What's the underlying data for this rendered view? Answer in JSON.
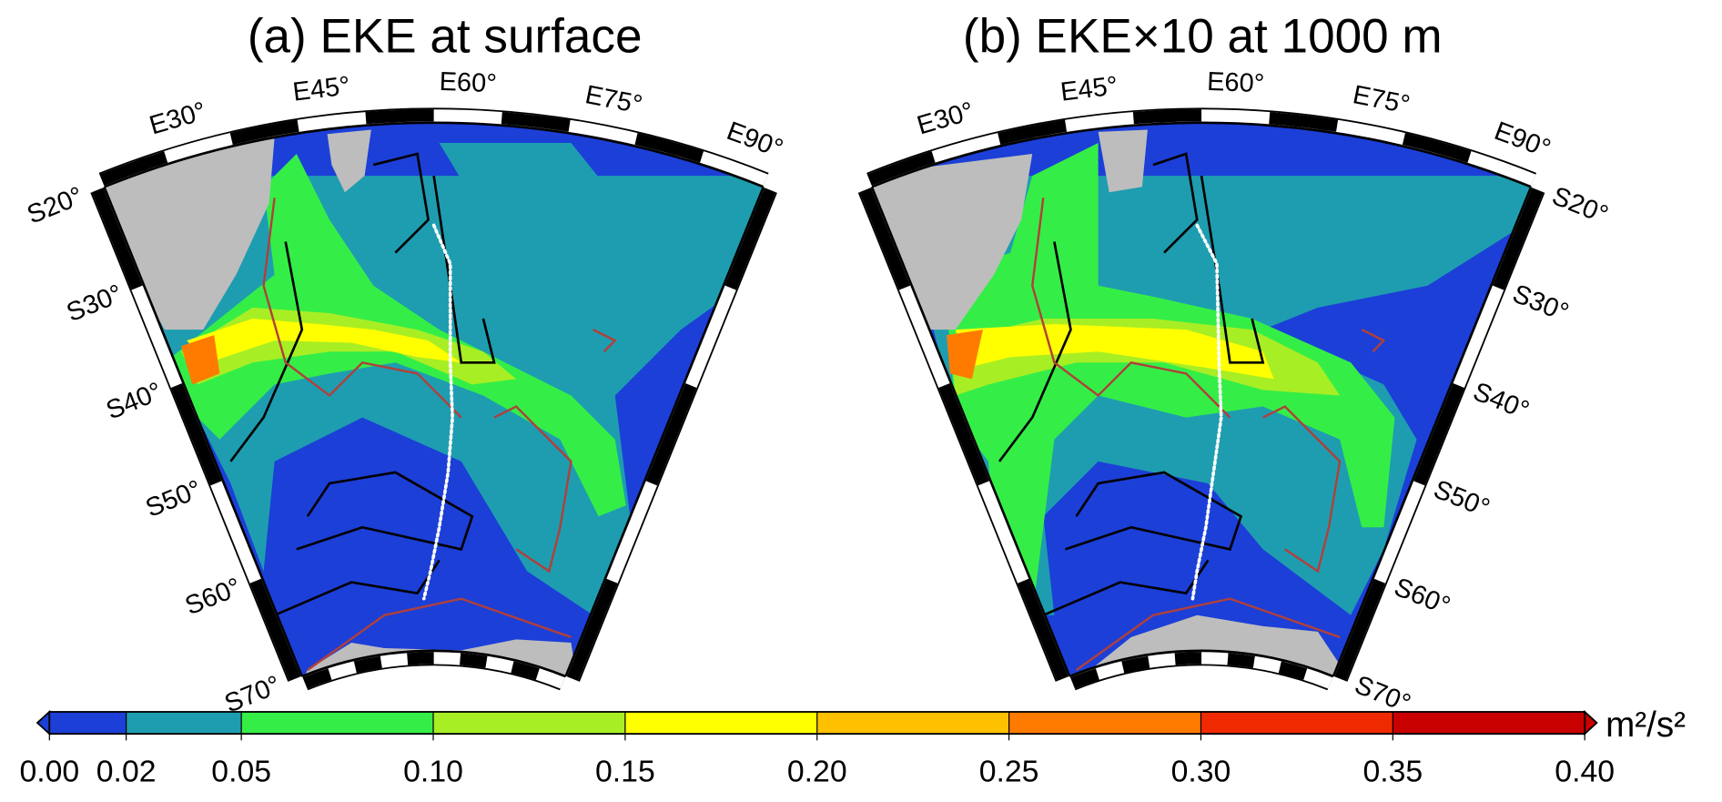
{
  "panels": [
    {
      "title": "(a) EKE at surface",
      "lon_labels": [
        {
          "value": 30,
          "label": "E30°"
        },
        {
          "value": 45,
          "label": "E45°"
        },
        {
          "value": 60,
          "label": "E60°"
        },
        {
          "value": 75,
          "label": "E75°"
        },
        {
          "value": 90,
          "label": "E90°"
        }
      ],
      "lat_labels": [
        {
          "value": -20,
          "label": "S20°"
        },
        {
          "value": -30,
          "label": "S30°"
        },
        {
          "value": -40,
          "label": "S40°"
        },
        {
          "value": -50,
          "label": "S50°"
        },
        {
          "value": -60,
          "label": "S60°"
        },
        {
          "value": -70,
          "label": "S70°"
        }
      ]
    },
    {
      "title": "(b) EKE×10 at 1000 m",
      "lon_labels": [
        {
          "value": 30,
          "label": "E30°"
        },
        {
          "value": 45,
          "label": "E45°"
        },
        {
          "value": 60,
          "label": "E60°"
        },
        {
          "value": 75,
          "label": "E75°"
        },
        {
          "value": 90,
          "label": "E90°"
        }
      ],
      "lat_labels": [
        {
          "value": -20,
          "label": "S20°"
        },
        {
          "value": -30,
          "label": "S30°"
        },
        {
          "value": -40,
          "label": "S40°"
        },
        {
          "value": -50,
          "label": "S50°"
        },
        {
          "value": -60,
          "label": "S60°"
        },
        {
          "value": -70,
          "label": "S70°"
        }
      ]
    }
  ],
  "colorbar": {
    "ticks": [
      {
        "value": 0,
        "label": "0.00"
      },
      {
        "value": 0.02,
        "label": "0.02"
      },
      {
        "value": 0.05,
        "label": "0.05"
      },
      {
        "value": 0.1,
        "label": "0.10"
      },
      {
        "value": 0.15,
        "label": "0.15"
      },
      {
        "value": 0.2,
        "label": "0.20"
      },
      {
        "value": 0.25,
        "label": "0.25"
      },
      {
        "value": 0.3,
        "label": "0.30"
      },
      {
        "value": 0.35,
        "label": "0.35"
      },
      {
        "value": 0.4,
        "label": "0.40"
      }
    ],
    "colors": [
      "#1c3fd8",
      "#1e9db0",
      "#34ee47",
      "#a8ee24",
      "#ffff00",
      "#ffc000",
      "#ff7b00",
      "#ef2a00",
      "#c80000"
    ],
    "unit": "m²/s²"
  }
}
